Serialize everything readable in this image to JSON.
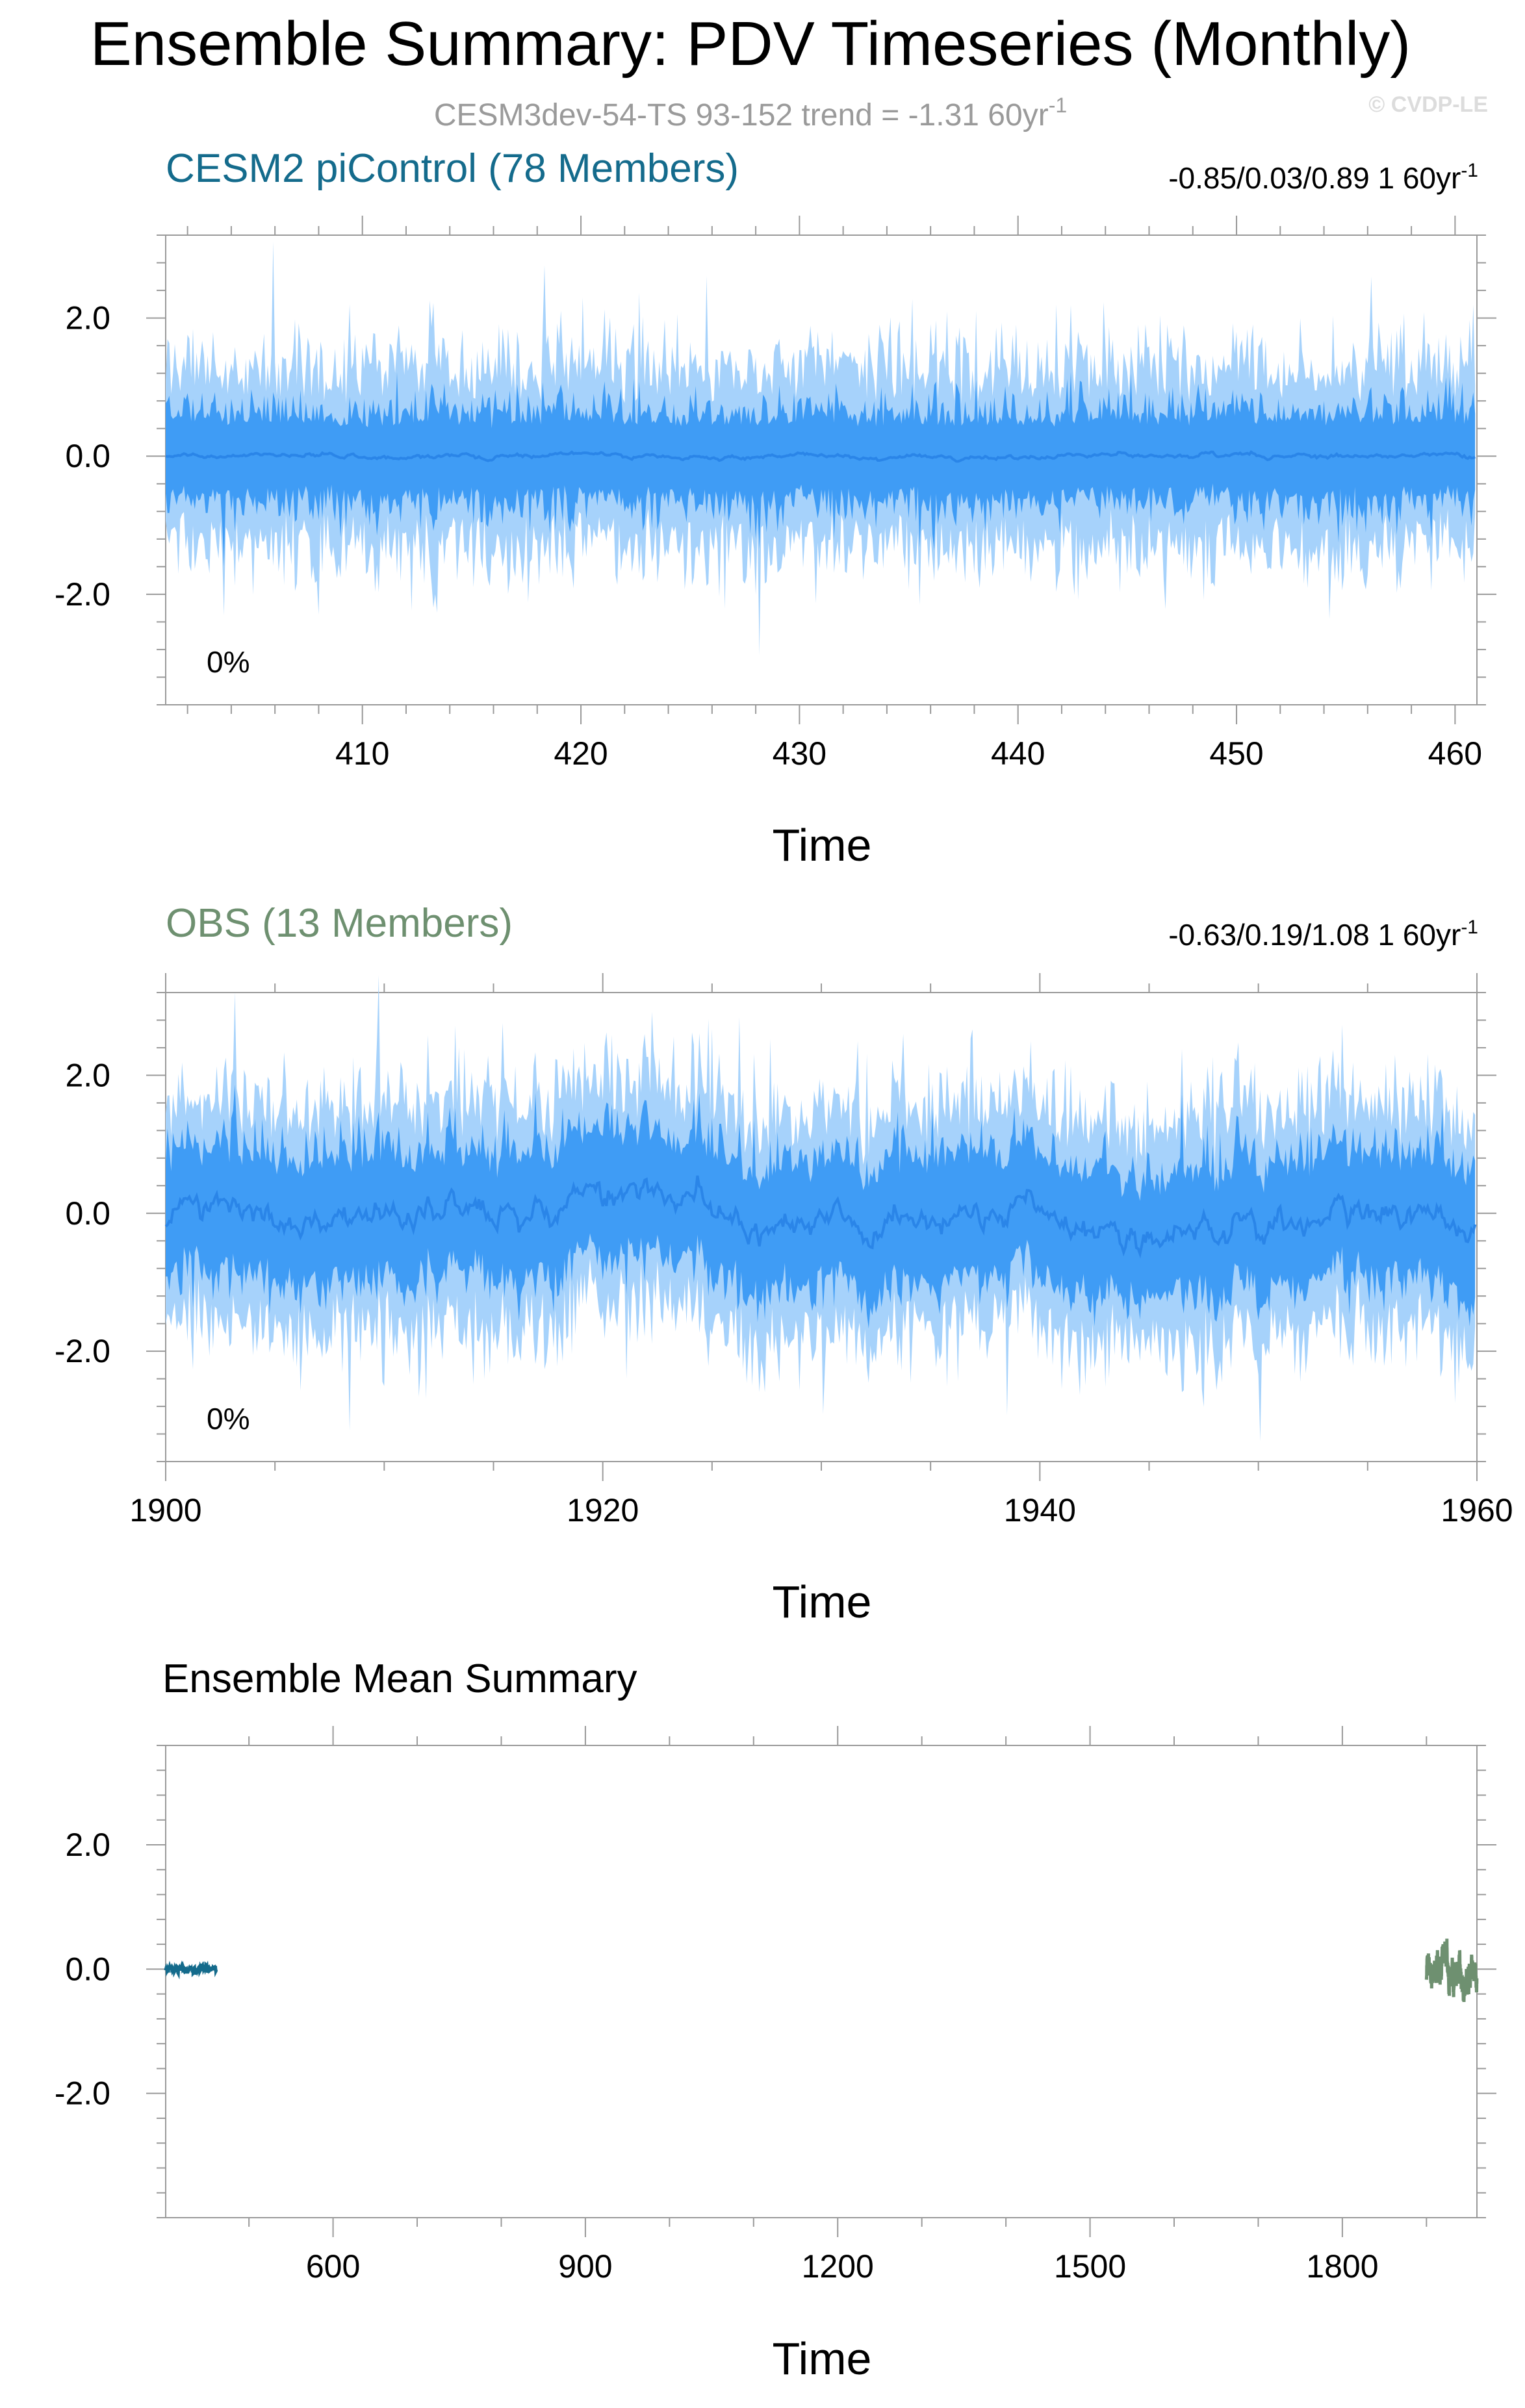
{
  "figure": {
    "title": "Ensemble Summary: PDV Timeseries (Monthly)",
    "subtitle_main": "CESM3dev-54-TS 93-152 trend = -1.31 60yr",
    "subtitle_sup": "-1",
    "copyright": "© CVDP-LE"
  },
  "colors": {
    "outer_band": "#a6d2fb",
    "inner_band": "#3f9cf5",
    "mean_line": "#2a85e8",
    "cesm_title": "#146b8c",
    "obs_title": "#6e9070",
    "subtitle": "#9a9a9a",
    "copyright": "#dcdcdc"
  },
  "chart_data": [
    {
      "type": "area",
      "title": "CESM2 piControl (78 Members)",
      "stats_main": "-0.85/0.03/0.89 1 60yr",
      "stats_sup": "-1",
      "annotation": "0%",
      "xlabel": "Time",
      "ylabel": "",
      "xlim": [
        401,
        461
      ],
      "ylim": [
        -3.6,
        3.2
      ],
      "xticks": [
        410,
        420,
        430,
        440,
        450,
        460
      ],
      "xtick_labels": [
        "410",
        "420",
        "430",
        "440",
        "450",
        "460"
      ],
      "yticks": [
        2.0,
        0.0,
        -2.0
      ],
      "ytick_labels": [
        "2.0",
        "0.0",
        "-2.0"
      ],
      "series": [
        {
          "name": "",
          "role": "10-90% range",
          "values_summary": {
            "min": -1.8,
            "max": 1.7
          }
        },
        {
          "name": "",
          "role": "25-75% range",
          "values_summary": {
            "min": -1.2,
            "max": 1.2
          }
        },
        {
          "name": "",
          "role": "ensemble mean",
          "values_summary": {
            "min": -0.2,
            "max": 0.2
          }
        }
      ],
      "grid": false
    },
    {
      "type": "area",
      "title": "OBS (13 Members)",
      "stats_main": "-0.63/0.19/1.08 1 60yr",
      "stats_sup": "-1",
      "annotation": "0%",
      "xlabel": "Time",
      "ylabel": "",
      "xlim": [
        1900,
        1960
      ],
      "ylim": [
        -3.6,
        3.2
      ],
      "xticks": [
        1900,
        1920,
        1940,
        1960
      ],
      "xtick_labels": [
        "1900",
        "1920",
        "1940",
        "1960"
      ],
      "yticks": [
        2.0,
        0.0,
        -2.0
      ],
      "ytick_labels": [
        "2.0",
        "0.0",
        "-2.0"
      ],
      "series": [
        {
          "name": "",
          "role": "10-90% range",
          "values_summary": {
            "min": -2.8,
            "max": 2.4
          }
        },
        {
          "name": "",
          "role": "25-75% range",
          "values_summary": {
            "min": -2.0,
            "max": 1.8
          }
        },
        {
          "name": "",
          "role": "ensemble mean",
          "values_summary": {
            "min": -0.6,
            "max": 0.6
          }
        }
      ],
      "grid": false
    },
    {
      "type": "line",
      "title": "Ensemble Mean Summary",
      "xlabel": "Time",
      "ylabel": "",
      "xlim": [
        401,
        1960
      ],
      "ylim": [
        -4.0,
        3.6
      ],
      "xticks": [
        600,
        900,
        1200,
        1500,
        1800
      ],
      "xtick_labels": [
        "600",
        "900",
        "1200",
        "1500",
        "1800"
      ],
      "yticks": [
        2.0,
        0.0,
        -2.0
      ],
      "ytick_labels": [
        "2.0",
        "0.0",
        "-2.0"
      ],
      "series": [
        {
          "name": "",
          "role": "CESM2 piControl ensemble mean",
          "x_range": [
            401,
            461
          ],
          "values_summary": {
            "min": -0.2,
            "max": 0.2
          }
        },
        {
          "name": "",
          "role": "OBS ensemble mean",
          "x_range": [
            1900,
            1960
          ],
          "values_summary": {
            "min": -0.6,
            "max": 0.6
          }
        }
      ],
      "grid": false
    }
  ]
}
